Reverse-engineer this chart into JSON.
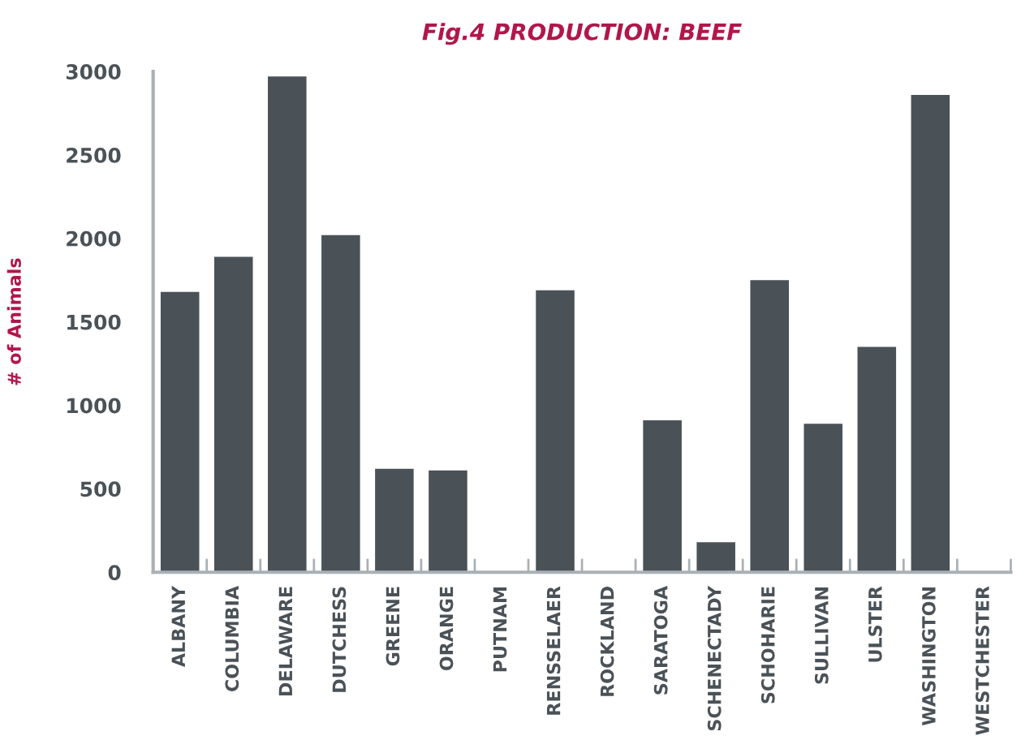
{
  "chart_data": {
    "type": "bar",
    "title": "Fig.4 PRODUCTION: BEEF",
    "ylabel": "# of Animals",
    "categories": [
      "ALBANY",
      "COLUMBIA",
      "DELAWARE",
      "DUTCHESS",
      "GREENE",
      "ORANGE",
      "PUTNAM",
      "RENSSELAER",
      "ROCKLAND",
      "SARATOGA",
      "SCHENECTADY",
      "SCHOHARIE",
      "SULLIVAN",
      "ULSTER",
      "WASHINGTON",
      "WESTCHESTER"
    ],
    "values": [
      1680,
      1890,
      2970,
      2020,
      620,
      610,
      0,
      1690,
      0,
      910,
      180,
      1750,
      890,
      1350,
      2860,
      0
    ],
    "color": "#4a5258",
    "ylim": [
      0,
      3000
    ],
    "yticks": [
      0,
      500,
      1000,
      1500,
      2000,
      2500,
      3000
    ],
    "grid": false
  }
}
